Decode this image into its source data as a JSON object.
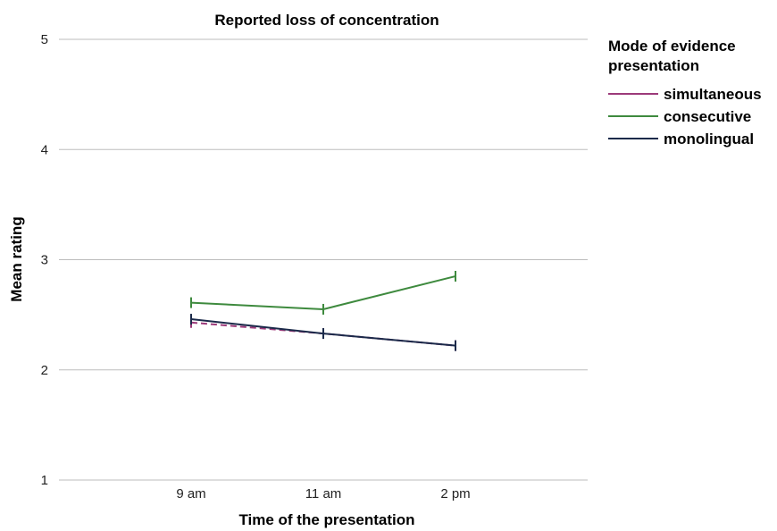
{
  "chart_data": {
    "type": "line",
    "title": "Reported loss of concentration",
    "xlabel": "Time of the presentation",
    "ylabel": "Mean rating",
    "categories": [
      "9 am",
      "11 am",
      "2 pm"
    ],
    "ylim": [
      1,
      5
    ],
    "yticks": [
      1,
      2,
      3,
      4,
      5
    ],
    "grid": true,
    "legend": {
      "title": "Mode of evidence presentation",
      "placement": "right"
    },
    "series": [
      {
        "name": "simultaneous",
        "values": [
          2.43,
          2.33,
          2.22
        ],
        "color": "#9c3a7a",
        "dashed": true
      },
      {
        "name": "consecutive",
        "values": [
          2.61,
          2.55,
          2.85
        ],
        "color": "#3e8a3e",
        "dashed": false
      },
      {
        "name": "monolingual",
        "values": [
          2.46,
          2.33,
          2.22
        ],
        "color": "#1b2a4a",
        "dashed": false
      }
    ]
  }
}
